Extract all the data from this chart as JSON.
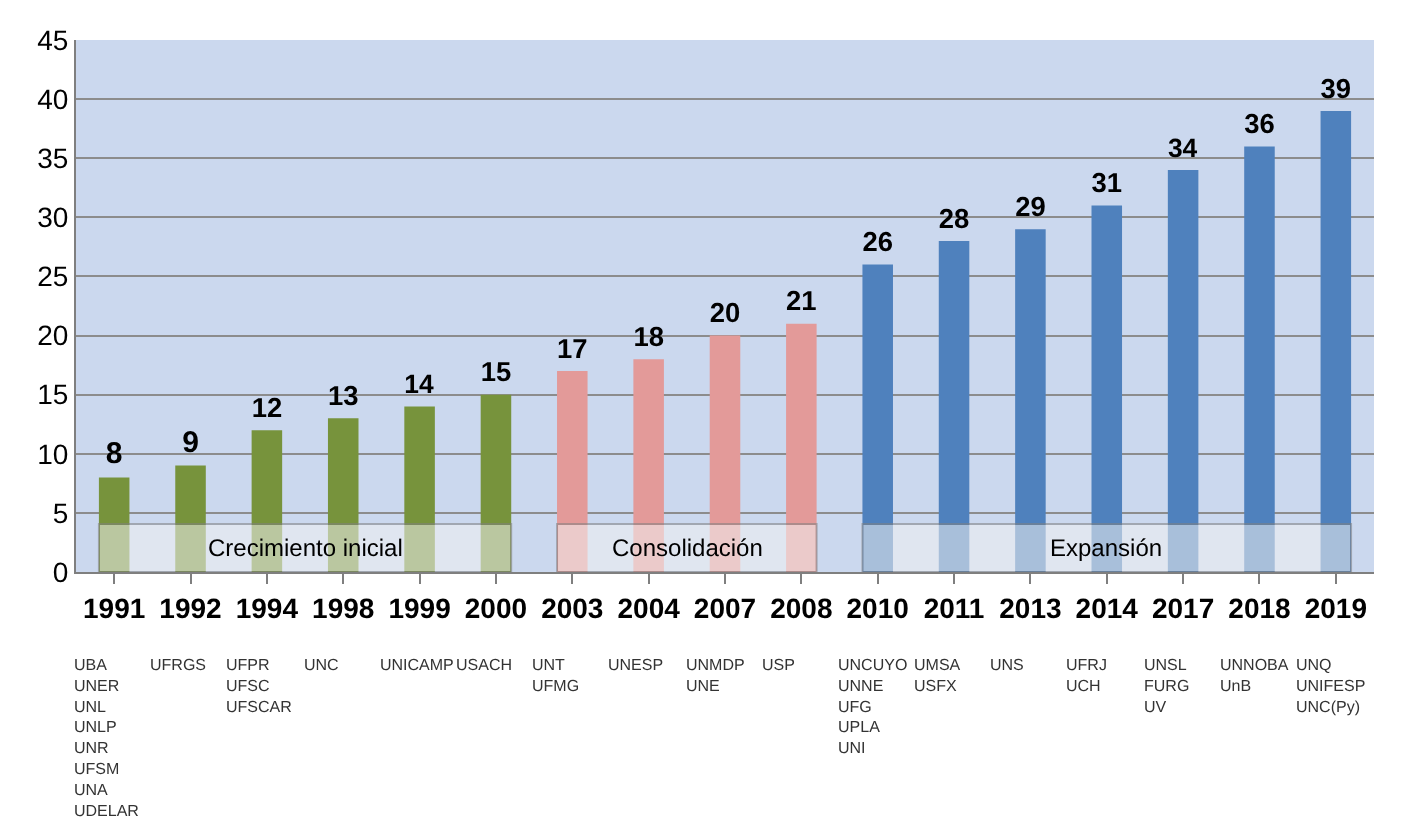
{
  "chart_data": {
    "type": "bar",
    "categories": [
      "1991",
      "1992",
      "1994",
      "1998",
      "1999",
      "2000",
      "2003",
      "2004",
      "2007",
      "2008",
      "2010",
      "2011",
      "2013",
      "2014",
      "2017",
      "2018",
      "2019"
    ],
    "values": [
      8,
      9,
      12,
      13,
      14,
      15,
      17,
      18,
      20,
      21,
      26,
      28,
      29,
      31,
      34,
      36,
      39
    ],
    "colors": [
      "#77933c",
      "#77933c",
      "#77933c",
      "#77933c",
      "#77933c",
      "#77933c",
      "#e39a99",
      "#e39a99",
      "#e39a99",
      "#e39a99",
      "#4f81bd",
      "#4f81bd",
      "#4f81bd",
      "#4f81bd",
      "#4f81bd",
      "#4f81bd",
      "#4f81bd"
    ],
    "ylim": [
      0,
      45
    ],
    "yticks": [
      0,
      5,
      10,
      15,
      20,
      25,
      30,
      35,
      40,
      45
    ],
    "grid": "y",
    "data_labels": true,
    "bands": [
      {
        "axis": "x",
        "from": "1991",
        "to": "2000",
        "label": "Crecimiento inicial",
        "color": "#f2f2f2"
      },
      {
        "axis": "x",
        "from": "2003",
        "to": "2008",
        "label": "Consolidación",
        "color": "#f2f2f2"
      },
      {
        "axis": "x",
        "from": "2010",
        "to": "2019",
        "label": "Expansión",
        "color": "#f2f2f2"
      }
    ],
    "annotations": [
      "UBA\nUNER\nUNL\nUNLP\nUNR\nUFSM\nUNA\nUDELAR",
      "UFRGS",
      "UFPR\nUFSC\nUFSCAR",
      "UNC",
      "UNICAMP",
      "USACH",
      "UNT\nUFMG",
      "UNESP",
      "UNMDP\nUNE",
      "USP",
      "UNCUYO\nUNNE\nUFG\nUPLA\nUNI",
      "UMSA\nUSFX",
      "UNS",
      "UFRJ\nUCH",
      "UNSL\nFURG\nUV",
      "UNNOBA\nUnB",
      "UNQ\nUNIFESP\nUNC(Py)"
    ]
  }
}
